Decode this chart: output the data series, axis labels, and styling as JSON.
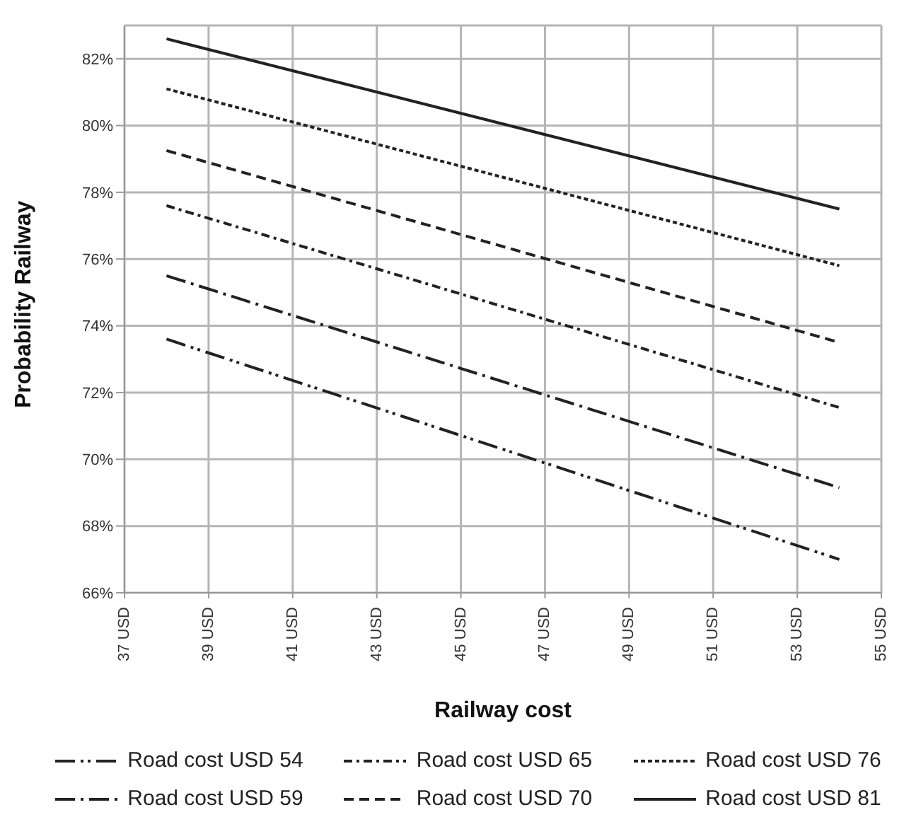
{
  "chart_data": {
    "type": "line",
    "xlabel": "Railway cost",
    "ylabel": "Probability Railway",
    "x": [
      38,
      54
    ],
    "series": [
      {
        "name": "Road cost USD 54",
        "color": "#222222",
        "line_style": "dashdotdot",
        "values": [
          73.6,
          67.0
        ]
      },
      {
        "name": "Road cost USD 59",
        "color": "#222222",
        "line_style": "longdashdot",
        "values": [
          75.5,
          69.15
        ]
      },
      {
        "name": "Road cost USD 65",
        "color": "#222222",
        "line_style": "dashdot",
        "values": [
          77.6,
          71.55
        ]
      },
      {
        "name": "Road cost USD 70",
        "color": "#222222",
        "line_style": "dashed",
        "values": [
          79.25,
          73.5
        ]
      },
      {
        "name": "Road cost USD 76",
        "color": "#222222",
        "line_style": "dotted",
        "values": [
          81.1,
          75.8
        ]
      },
      {
        "name": "Road cost USD 81",
        "color": "#222222",
        "line_style": "solid",
        "values": [
          82.6,
          77.5
        ]
      }
    ],
    "xlim": [
      37,
      55
    ],
    "xticks": [
      {
        "value": 37,
        "label": "37 USD"
      },
      {
        "value": 39,
        "label": "39 USD"
      },
      {
        "value": 41,
        "label": "41 USD"
      },
      {
        "value": 43,
        "label": "43 USD"
      },
      {
        "value": 45,
        "label": "45 USD"
      },
      {
        "value": 47,
        "label": "47 USD"
      },
      {
        "value": 49,
        "label": "49 USD"
      },
      {
        "value": 51,
        "label": "51 USD"
      },
      {
        "value": 53,
        "label": "53 USD"
      },
      {
        "value": 55,
        "label": "55 USD"
      }
    ],
    "ylim": [
      66,
      83
    ],
    "yticks": [
      {
        "value": 66,
        "label": "66%"
      },
      {
        "value": 68,
        "label": "68%"
      },
      {
        "value": 70,
        "label": "70%"
      },
      {
        "value": 72,
        "label": "72%"
      },
      {
        "value": 74,
        "label": "74%"
      },
      {
        "value": 76,
        "label": "76%"
      },
      {
        "value": 78,
        "label": "78%"
      },
      {
        "value": 80,
        "label": "80%"
      },
      {
        "value": 82,
        "label": "82%"
      }
    ],
    "grid": true,
    "legend": "bottom",
    "marker": "none"
  }
}
